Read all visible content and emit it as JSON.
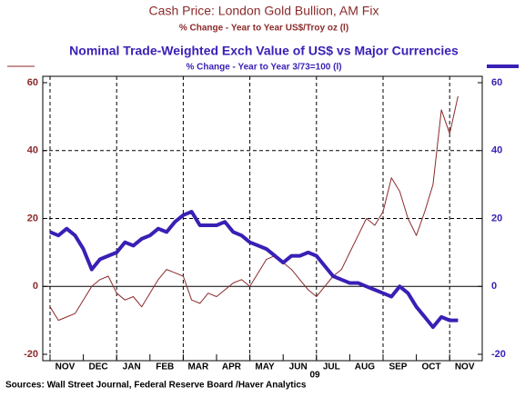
{
  "chart_data": {
    "type": "line",
    "title": "Cash Price: London Gold Bullion, AM Fix",
    "subtitle": "% Change - Year to Year        US$/Troy oz   (l)",
    "title2": "Nominal Trade-Weighted Exch Value of US$ vs Major Currencies",
    "subtitle2": "% Change - Year to Year          3/73=100    (l)",
    "x_year_label": "09",
    "source": "Sources:  Wall Street Journal, Federal Reserve Board /Haver Analytics",
    "categories": [
      "NOV",
      null,
      null,
      null,
      "DEC",
      null,
      null,
      null,
      "JAN",
      null,
      null,
      null,
      "FEB",
      null,
      null,
      null,
      "MAR",
      null,
      null,
      null,
      "APR",
      null,
      null,
      null,
      "MAY",
      null,
      null,
      null,
      "JUN",
      null,
      null,
      null,
      "JUL",
      null,
      null,
      null,
      "AUG",
      null,
      null,
      null,
      "SEP",
      null,
      null,
      null,
      "OCT",
      null,
      null,
      null,
      "NOV",
      null
    ],
    "ylim": [
      -20,
      60
    ],
    "yticks": [
      -20,
      0,
      20,
      40,
      60
    ],
    "y2lim": [
      -20,
      60
    ],
    "y2ticks": [
      -20,
      0,
      20,
      40,
      60
    ],
    "grid": true,
    "series": [
      {
        "name": "Cash Price: London Gold Bullion, AM Fix",
        "color": "#8b2a2a",
        "axis": "y",
        "values": [
          -6,
          -10,
          -9,
          -8,
          -4,
          0,
          2,
          3,
          -2,
          -4,
          -3,
          -6,
          -2,
          2,
          5,
          4,
          3,
          -4,
          -5,
          -2,
          -3,
          -1,
          1,
          2,
          0,
          4,
          8,
          9,
          7,
          5,
          2,
          -1,
          -3,
          0,
          3,
          5,
          10,
          15,
          20,
          18,
          22,
          32,
          28,
          20,
          15,
          22,
          30,
          52,
          45,
          56
        ]
      },
      {
        "name": "Nominal Trade-Weighted Exch Value of US$ vs Major Currencies",
        "color": "#3a1fb5",
        "axis": "y2",
        "values": [
          16,
          15,
          17,
          15,
          11,
          5,
          8,
          9,
          10,
          13,
          12,
          14,
          15,
          17,
          16,
          19,
          21,
          22,
          18,
          18,
          18,
          19,
          16,
          15,
          13,
          12,
          11,
          9,
          7,
          9,
          9,
          10,
          9,
          6,
          3,
          2,
          1,
          1,
          0,
          -1,
          -2,
          -3,
          0,
          -2,
          -6,
          -9,
          -12,
          -9,
          -10,
          -10
        ]
      }
    ]
  }
}
